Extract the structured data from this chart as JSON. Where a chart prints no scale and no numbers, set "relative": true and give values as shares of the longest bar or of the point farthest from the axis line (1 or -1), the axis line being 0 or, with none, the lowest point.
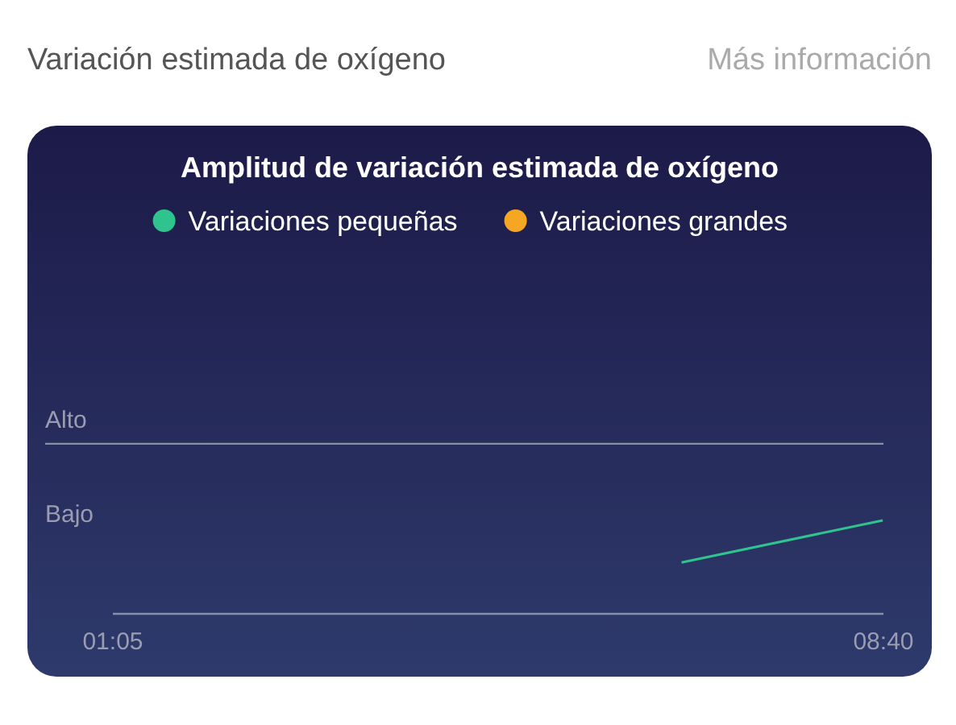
{
  "chart_data": {
    "type": "line",
    "title": "Amplitud de variación estimada de oxígeno",
    "relative": true,
    "annotations": [
      "Variación estimada de oxígeno",
      "Más información",
      "Bajo"
    ],
    "x": [
      6.68,
      8.66
    ],
    "series": [
      {
        "name": "Variaciones pequeñas",
        "color": "#2fc48d",
        "values": [
          0.55,
          1
        ]
      },
      {
        "name": "Variaciones grandes",
        "color": "#f5a623",
        "values": [
          null,
          null
        ]
      }
    ],
    "xlim": [
      1.0833,
      8.6667
    ],
    "xticks": [
      {
        "value": 1.0833,
        "label": "01:05"
      },
      {
        "value": 8.6667,
        "label": "08:40"
      }
    ],
    "ref_lines": [
      {
        "axis": "y",
        "value": 1.82,
        "label": "Alto",
        "color": "#8a8fa8"
      }
    ],
    "legend": "top",
    "marker": "none",
    "line_style": "solid"
  }
}
